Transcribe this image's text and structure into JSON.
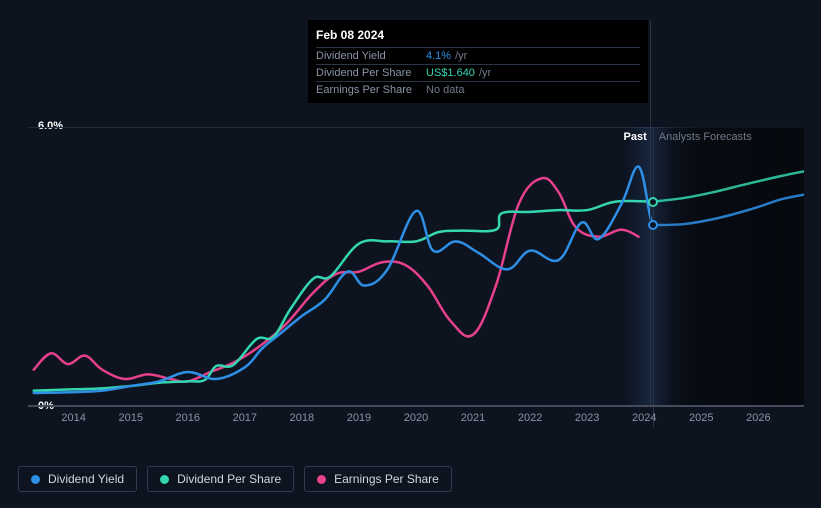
{
  "background_color": "#0d1420",
  "tooltip": {
    "date": "Feb 08 2024",
    "rows": [
      {
        "label": "Dividend Yield",
        "value": "4.1%",
        "suffix": "/yr",
        "value_color": "#2e8fe6"
      },
      {
        "label": "Dividend Per Share",
        "value": "US$1.640",
        "suffix": "/yr",
        "value_color": "#34d6b0"
      },
      {
        "label": "Earnings Per Share",
        "value": "No data",
        "suffix": "",
        "value_color": "#70798a"
      }
    ]
  },
  "chart": {
    "type": "line",
    "ylim": [
      0,
      6
    ],
    "y_ticks": [
      {
        "v": 6.0,
        "label": "6.0%"
      },
      {
        "v": 0.0,
        "label": "0%"
      }
    ],
    "x_start_year": 2013.2,
    "x_end_year": 2026.8,
    "x_ticks": [
      2014,
      2015,
      2016,
      2017,
      2018,
      2019,
      2020,
      2021,
      2022,
      2023,
      2024,
      2025,
      2026
    ],
    "past_boundary_year": 2024.15,
    "hover_year": 2024.1,
    "past_label": "Past",
    "forecast_label": "Analysts Forecasts",
    "line_width": 2.5,
    "axis_color": "#444c5c",
    "tick_color": "#8a94a6",
    "series": [
      {
        "name": "Earnings Per Share",
        "color": "#e6418a",
        "points": [
          [
            2013.3,
            0.8
          ],
          [
            2013.6,
            1.15
          ],
          [
            2013.9,
            0.92
          ],
          [
            2014.2,
            1.1
          ],
          [
            2014.5,
            0.8
          ],
          [
            2014.9,
            0.6
          ],
          [
            2015.3,
            0.7
          ],
          [
            2015.7,
            0.6
          ],
          [
            2016.0,
            0.55
          ],
          [
            2016.4,
            0.75
          ],
          [
            2016.8,
            0.95
          ],
          [
            2017.2,
            1.25
          ],
          [
            2017.7,
            1.75
          ],
          [
            2018.2,
            2.45
          ],
          [
            2018.6,
            2.85
          ],
          [
            2019.0,
            2.9
          ],
          [
            2019.4,
            3.1
          ],
          [
            2019.8,
            3.05
          ],
          [
            2020.2,
            2.6
          ],
          [
            2020.6,
            1.85
          ],
          [
            2021.0,
            1.55
          ],
          [
            2021.4,
            2.6
          ],
          [
            2021.8,
            4.35
          ],
          [
            2022.2,
            4.9
          ],
          [
            2022.5,
            4.6
          ],
          [
            2022.8,
            3.85
          ],
          [
            2023.2,
            3.65
          ],
          [
            2023.6,
            3.8
          ],
          [
            2023.9,
            3.65
          ]
        ],
        "forecast_points": []
      },
      {
        "name": "Dividend Per Share",
        "color": "#34d6b0",
        "points": [
          [
            2013.3,
            0.35
          ],
          [
            2014.0,
            0.38
          ],
          [
            2014.5,
            0.4
          ],
          [
            2015.0,
            0.45
          ],
          [
            2015.5,
            0.52
          ],
          [
            2016.0,
            0.55
          ],
          [
            2016.3,
            0.58
          ],
          [
            2016.5,
            0.88
          ],
          [
            2016.8,
            0.9
          ],
          [
            2017.2,
            1.45
          ],
          [
            2017.5,
            1.5
          ],
          [
            2017.8,
            2.1
          ],
          [
            2018.2,
            2.75
          ],
          [
            2018.5,
            2.8
          ],
          [
            2019.0,
            3.5
          ],
          [
            2019.5,
            3.55
          ],
          [
            2020.0,
            3.55
          ],
          [
            2020.4,
            3.75
          ],
          [
            2020.8,
            3.78
          ],
          [
            2021.4,
            3.8
          ],
          [
            2021.5,
            4.15
          ],
          [
            2022.0,
            4.18
          ],
          [
            2022.5,
            4.22
          ],
          [
            2023.0,
            4.22
          ],
          [
            2023.5,
            4.4
          ],
          [
            2024.15,
            4.4
          ]
        ],
        "forecast_points": [
          [
            2024.15,
            4.4
          ],
          [
            2024.7,
            4.48
          ],
          [
            2025.2,
            4.6
          ],
          [
            2025.8,
            4.78
          ],
          [
            2026.4,
            4.95
          ],
          [
            2026.8,
            5.05
          ]
        ]
      },
      {
        "name": "Dividend Yield",
        "color": "#2e8fe6",
        "points": [
          [
            2013.3,
            0.3
          ],
          [
            2014.0,
            0.32
          ],
          [
            2014.5,
            0.35
          ],
          [
            2015.0,
            0.45
          ],
          [
            2015.5,
            0.55
          ],
          [
            2016.0,
            0.75
          ],
          [
            2016.5,
            0.6
          ],
          [
            2017.0,
            0.85
          ],
          [
            2017.3,
            1.25
          ],
          [
            2017.6,
            1.55
          ],
          [
            2018.0,
            1.95
          ],
          [
            2018.4,
            2.3
          ],
          [
            2018.8,
            2.9
          ],
          [
            2019.1,
            2.6
          ],
          [
            2019.5,
            2.95
          ],
          [
            2020.0,
            4.2
          ],
          [
            2020.3,
            3.35
          ],
          [
            2020.7,
            3.55
          ],
          [
            2021.1,
            3.3
          ],
          [
            2021.6,
            2.95
          ],
          [
            2022.0,
            3.35
          ],
          [
            2022.5,
            3.15
          ],
          [
            2022.9,
            3.95
          ],
          [
            2023.2,
            3.6
          ],
          [
            2023.6,
            4.35
          ],
          [
            2023.9,
            5.15
          ],
          [
            2024.1,
            4.1
          ],
          [
            2024.15,
            3.9
          ]
        ],
        "forecast_points": [
          [
            2024.15,
            3.9
          ],
          [
            2024.7,
            3.92
          ],
          [
            2025.3,
            4.05
          ],
          [
            2025.9,
            4.25
          ],
          [
            2026.4,
            4.45
          ],
          [
            2026.8,
            4.55
          ]
        ]
      }
    ],
    "markers": [
      {
        "series": "Dividend Per Share",
        "x": 2024.15,
        "y": 4.4,
        "color": "#34d6b0"
      },
      {
        "series": "Dividend Yield",
        "x": 2024.15,
        "y": 3.9,
        "color": "#2e8fe6"
      }
    ]
  },
  "legend": {
    "items": [
      {
        "label": "Dividend Yield",
        "color": "#2e8fe6"
      },
      {
        "label": "Dividend Per Share",
        "color": "#34d6b0"
      },
      {
        "label": "Earnings Per Share",
        "color": "#e6418a"
      }
    ]
  }
}
